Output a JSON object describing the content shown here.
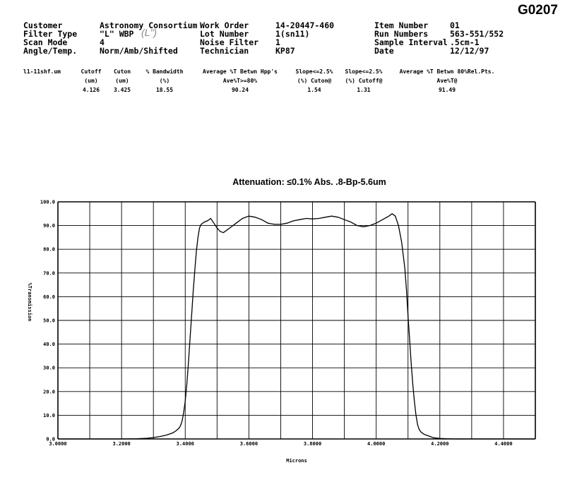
{
  "doc_id": "G0207",
  "header": {
    "col1": [
      {
        "label": "Customer",
        "value": "Astronomy Consortium"
      },
      {
        "label": "Filter Type",
        "value": "\"L\" WBP"
      },
      {
        "label": "Scan Mode",
        "value": "4"
      },
      {
        "label": "Angle/Temp.",
        "value": "Norm/Amb/Shifted"
      }
    ],
    "col2": [
      {
        "label": "Work Order",
        "value": "14-20447-460"
      },
      {
        "label": "Lot Number",
        "value": "1(sn11)"
      },
      {
        "label": "Noise Filter",
        "value": "1"
      },
      {
        "label": "Technician",
        "value": "KP87"
      }
    ],
    "col3": [
      {
        "label": "Item Number",
        "value": "01"
      },
      {
        "label": "Run Numbers",
        "value": "563-551/552"
      },
      {
        "label": "Sample Interval",
        "value": ".5cm-1"
      },
      {
        "label": "Date",
        "value": "12/12/97"
      }
    ],
    "handwritten_note": "(L\")"
  },
  "measurements": {
    "file": "l1-11shf.um",
    "columns": [
      {
        "line1": "Cutoff",
        "line2": "(um)",
        "value": "4.126"
      },
      {
        "line1": "Cuton",
        "line2": "(um)",
        "value": "3.425"
      },
      {
        "line1": "% Bandwidth",
        "line2": "(%)",
        "value": "18.55"
      },
      {
        "line1": "Average %T Betwn Hpp's",
        "line2": "Ave%T>=80%",
        "value": "90.24"
      },
      {
        "line1": "Slope<=2.5%",
        "line2": "(%) Cuton@",
        "value": "1.54"
      },
      {
        "line1": "Slope<=2.5%",
        "line2": "(%) Cutoff@",
        "value": "1.31"
      },
      {
        "line1": "Average %T Betwn 80%Rel.Pts.",
        "line2": "Ave%T@",
        "value": "91.49"
      }
    ]
  },
  "chart_data": {
    "type": "line",
    "title": "Attenuation: ≤0.1% Abs. .8-Bp-5.6um",
    "xlabel": "Microns",
    "ylabel": "%Transmission",
    "xlim": [
      3.0,
      4.5
    ],
    "ylim": [
      0,
      100
    ],
    "x_ticks": [
      "3.0000",
      "3.2000",
      "3.4000",
      "3.6000",
      "3.8000",
      "4.0000",
      "4.2000",
      "4.4000"
    ],
    "y_ticks": [
      "0.0",
      "10.0",
      "20.0",
      "30.0",
      "40.0",
      "50.0",
      "60.0",
      "70.0",
      "80.0",
      "90.0",
      "100.0"
    ],
    "grid": true,
    "series": [
      {
        "x": [
          3.0,
          3.1,
          3.2,
          3.25,
          3.28,
          3.3,
          3.32,
          3.34,
          3.36,
          3.37,
          3.38,
          3.385,
          3.39,
          3.395,
          3.4,
          3.405,
          3.41,
          3.415,
          3.42,
          3.425,
          3.43,
          3.435,
          3.44,
          3.445,
          3.45,
          3.46,
          3.47,
          3.48,
          3.49,
          3.5,
          3.51,
          3.52,
          3.53,
          3.54,
          3.56,
          3.58,
          3.6,
          3.62,
          3.64,
          3.66,
          3.68,
          3.7,
          3.72,
          3.74,
          3.76,
          3.78,
          3.8,
          3.82,
          3.84,
          3.86,
          3.88,
          3.9,
          3.92,
          3.94,
          3.96,
          3.98,
          4.0,
          4.02,
          4.04,
          4.05,
          4.06,
          4.07,
          4.08,
          4.09,
          4.095,
          4.1,
          4.105,
          4.11,
          4.115,
          4.12,
          4.125,
          4.13,
          4.135,
          4.14,
          4.15,
          4.16,
          4.17,
          4.18,
          4.2,
          4.22,
          4.25,
          4.3,
          4.4,
          4.5
        ],
        "y": [
          0,
          0,
          0,
          0.1,
          0.3,
          0.6,
          1.0,
          1.6,
          2.5,
          3.3,
          4.5,
          5.5,
          7.5,
          11,
          16,
          23,
          32,
          42,
          52,
          62,
          71,
          79,
          85,
          89,
          90.5,
          91.5,
          92,
          93,
          91,
          89,
          87.5,
          87,
          88,
          89,
          91,
          93,
          94,
          93.5,
          92.5,
          91,
          90.5,
          90.5,
          91,
          92,
          92.5,
          93,
          92.8,
          93,
          93.5,
          94,
          93.5,
          92.5,
          91.5,
          90,
          89.5,
          90,
          91,
          92.5,
          94,
          95,
          94,
          90,
          83,
          72,
          63,
          52,
          42,
          32,
          23,
          16,
          10,
          6,
          4,
          3,
          2,
          1.5,
          1,
          0.5,
          0.2,
          0.1,
          0,
          0,
          0,
          0
        ]
      }
    ]
  }
}
